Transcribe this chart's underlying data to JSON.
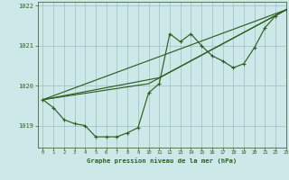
{
  "bg_color": "#cde8e8",
  "grid_color": "#9bbfbf",
  "line_color": "#2d6020",
  "title": "Graphe pression niveau de la mer (hPa)",
  "xlim": [
    -0.5,
    23
  ],
  "ylim": [
    1018.45,
    1022.1
  ],
  "yticks": [
    1019,
    1020,
    1021,
    1022
  ],
  "xticks": [
    0,
    1,
    2,
    3,
    4,
    5,
    6,
    7,
    8,
    9,
    10,
    11,
    12,
    13,
    14,
    15,
    16,
    17,
    18,
    19,
    20,
    21,
    22,
    23
  ],
  "main_x": [
    0,
    1,
    2,
    3,
    4,
    5,
    6,
    7,
    8,
    9,
    10,
    11,
    12,
    13,
    14,
    15,
    16,
    17,
    18,
    19,
    20,
    21,
    22,
    23
  ],
  "main_y": [
    1019.65,
    1019.45,
    1019.15,
    1019.05,
    1019.0,
    1018.72,
    1018.72,
    1018.72,
    1018.82,
    1018.95,
    1019.82,
    1020.05,
    1021.3,
    1021.1,
    1021.3,
    1021.0,
    1020.75,
    1020.62,
    1020.45,
    1020.55,
    1020.95,
    1021.45,
    1021.75,
    1021.9
  ],
  "line2_x": [
    0,
    10,
    23
  ],
  "line2_y": [
    1019.65,
    1020.05,
    1021.9
  ],
  "line3_x": [
    0,
    11,
    23
  ],
  "line3_y": [
    1019.65,
    1020.2,
    1021.9
  ],
  "line4_x": [
    0,
    23
  ],
  "line4_y": [
    1019.65,
    1021.9
  ]
}
